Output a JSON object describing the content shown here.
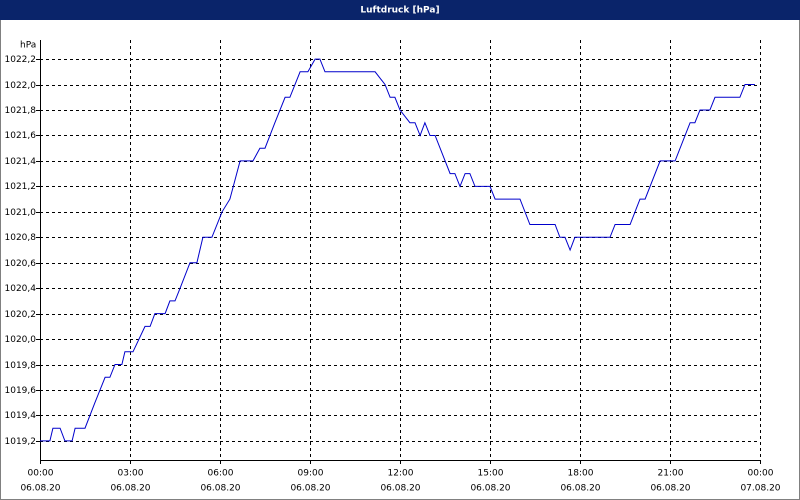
{
  "chart_data": {
    "type": "line",
    "title": "Luftdruck [hPa]",
    "y_unit": "hPa",
    "color": "#0000cc",
    "grid": true,
    "x": [
      0,
      0.33,
      0.43,
      0.67,
      0.83,
      1.07,
      1.17,
      1.5,
      1.83,
      2.17,
      2.33,
      2.5,
      2.73,
      2.83,
      3.1,
      3.5,
      3.67,
      3.83,
      4.17,
      4.33,
      4.5,
      4.67,
      5.0,
      5.23,
      5.43,
      5.73,
      6.07,
      6.33,
      6.67,
      7.1,
      7.33,
      7.5,
      7.83,
      8.17,
      8.33,
      8.67,
      8.93,
      9.17,
      9.33,
      9.5,
      11.17,
      11.5,
      11.67,
      11.83,
      12.0,
      12.33,
      12.5,
      12.67,
      12.83,
      13.0,
      13.17,
      13.67,
      13.83,
      14.0,
      14.17,
      14.33,
      14.5,
      15.0,
      15.17,
      16.0,
      16.33,
      17.17,
      17.33,
      17.5,
      17.67,
      17.83,
      19.0,
      19.17,
      19.67,
      20.0,
      20.17,
      20.67,
      21.17,
      21.67,
      21.83,
      22.0,
      22.33,
      22.5,
      23.33,
      23.5,
      23.83
    ],
    "values": [
      1019.2,
      1019.2,
      1019.3,
      1019.3,
      1019.2,
      1019.2,
      1019.3,
      1019.3,
      1019.5,
      1019.7,
      1019.7,
      1019.8,
      1019.8,
      1019.9,
      1019.9,
      1020.1,
      1020.1,
      1020.2,
      1020.2,
      1020.3,
      1020.3,
      1020.4,
      1020.6,
      1020.6,
      1020.8,
      1020.8,
      1021.0,
      1021.1,
      1021.4,
      1021.4,
      1021.5,
      1021.5,
      1021.7,
      1021.9,
      1021.9,
      1022.1,
      1022.1,
      1022.2,
      1022.2,
      1022.1,
      1022.1,
      1022.0,
      1021.9,
      1021.9,
      1021.8,
      1021.7,
      1021.7,
      1021.6,
      1021.7,
      1021.6,
      1021.6,
      1021.3,
      1021.3,
      1021.2,
      1021.3,
      1021.3,
      1021.2,
      1021.2,
      1021.1,
      1021.1,
      1020.9,
      1020.9,
      1020.8,
      1020.8,
      1020.7,
      1020.8,
      1020.8,
      1020.9,
      1020.9,
      1021.1,
      1021.1,
      1021.4,
      1021.4,
      1021.7,
      1021.7,
      1021.8,
      1021.8,
      1021.9,
      1021.9,
      1022.0,
      1022.0
    ],
    "xlim": [
      0,
      24
    ],
    "ylim": [
      1019.05,
      1022.35
    ],
    "xticks": [
      {
        "value": 0,
        "label": "00:00"
      },
      {
        "value": 3,
        "label": "03:00"
      },
      {
        "value": 6,
        "label": "06:00"
      },
      {
        "value": 9,
        "label": "09:00"
      },
      {
        "value": 12,
        "label": "12:00"
      },
      {
        "value": 15,
        "label": "15:00"
      },
      {
        "value": 18,
        "label": "18:00"
      },
      {
        "value": 21,
        "label": "21:00"
      },
      {
        "value": 24,
        "label": "00:00"
      }
    ],
    "xtick_dates": [
      "06.08.20",
      "06.08.20",
      "06.08.20",
      "06.08.20",
      "06.08.20",
      "06.08.20",
      "06.08.20",
      "06.08.20",
      "07.08.20"
    ],
    "yticks": [
      {
        "value": 1019.2,
        "label": "1019,2"
      },
      {
        "value": 1019.4,
        "label": "1019,4"
      },
      {
        "value": 1019.6,
        "label": "1019,6"
      },
      {
        "value": 1019.8,
        "label": "1019,8"
      },
      {
        "value": 1020.0,
        "label": "1020,0"
      },
      {
        "value": 1020.2,
        "label": "1020,2"
      },
      {
        "value": 1020.4,
        "label": "1020,4"
      },
      {
        "value": 1020.6,
        "label": "1020,6"
      },
      {
        "value": 1020.8,
        "label": "1020,8"
      },
      {
        "value": 1021.0,
        "label": "1021,0"
      },
      {
        "value": 1021.2,
        "label": "1021,2"
      },
      {
        "value": 1021.4,
        "label": "1021,4"
      },
      {
        "value": 1021.6,
        "label": "1021,6"
      },
      {
        "value": 1021.8,
        "label": "1021,8"
      },
      {
        "value": 1022.0,
        "label": "1022,0"
      },
      {
        "value": 1022.2,
        "label": "1022,2"
      }
    ]
  }
}
